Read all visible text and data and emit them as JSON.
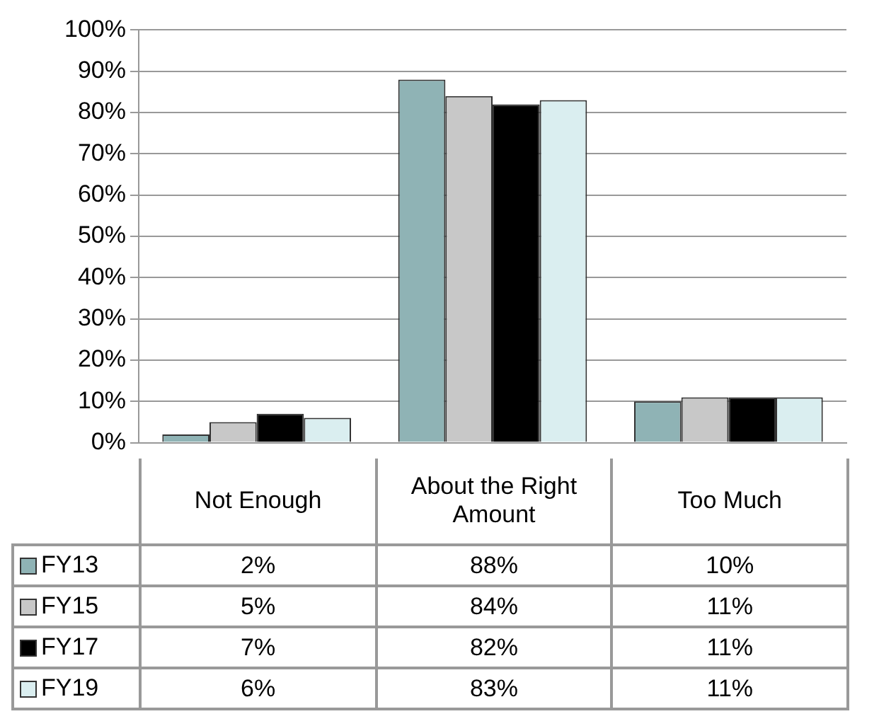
{
  "chart_data": {
    "type": "bar",
    "categories": [
      "Not Enough",
      "About the Right Amount",
      "Too Much"
    ],
    "series": [
      {
        "name": "FY13",
        "color": "#8fb3b5",
        "values": [
          2,
          88,
          10
        ],
        "value_labels": [
          "2%",
          "88%",
          "10%"
        ]
      },
      {
        "name": "FY15",
        "color": "#c8c8c8",
        "values": [
          5,
          84,
          11
        ],
        "value_labels": [
          "5%",
          "84%",
          "11%"
        ]
      },
      {
        "name": "FY17",
        "color": "#000000",
        "values": [
          7,
          82,
          11
        ],
        "value_labels": [
          "7%",
          "82%",
          "11%"
        ]
      },
      {
        "name": "FY19",
        "color": "#daeef0",
        "values": [
          6,
          83,
          11
        ],
        "value_labels": [
          "6%",
          "83%",
          "11%"
        ]
      }
    ],
    "ylim": [
      0,
      100
    ],
    "yticks": [
      {
        "value": 0,
        "label": "0%"
      },
      {
        "value": 10,
        "label": "10%"
      },
      {
        "value": 20,
        "label": "20%"
      },
      {
        "value": 30,
        "label": "30%"
      },
      {
        "value": 40,
        "label": "40%"
      },
      {
        "value": 50,
        "label": "50%"
      },
      {
        "value": 60,
        "label": "60%"
      },
      {
        "value": 70,
        "label": "70%"
      },
      {
        "value": 80,
        "label": "80%"
      },
      {
        "value": 90,
        "label": "90%"
      },
      {
        "value": 100,
        "label": "100%"
      }
    ],
    "grid": "y",
    "legend": "bottom"
  }
}
